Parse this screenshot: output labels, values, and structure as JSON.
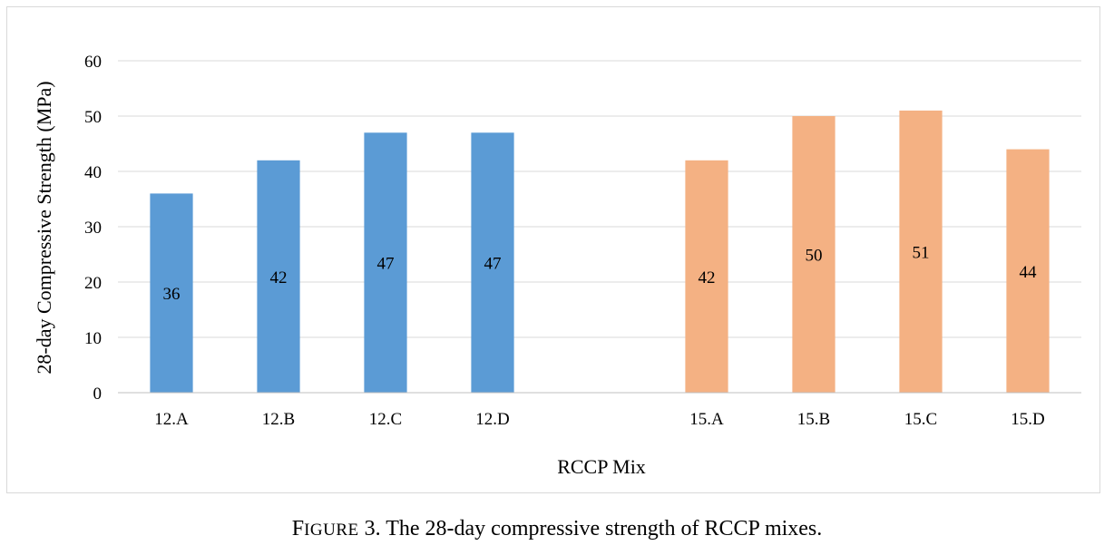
{
  "chart_data": {
    "type": "bar",
    "categories": [
      "12.A",
      "12.B",
      "12.C",
      "12.D",
      "",
      "15.A",
      "15.B",
      "15.C",
      "15.D"
    ],
    "series": [
      {
        "values": [
          36,
          42,
          47,
          47,
          null,
          null,
          null,
          null,
          null
        ],
        "color": "#5b9bd5"
      },
      {
        "values": [
          null,
          null,
          null,
          null,
          null,
          42,
          50,
          51,
          44
        ],
        "color": "#f4b183"
      }
    ],
    "data_labels": [
      "36",
      "42",
      "47",
      "47",
      "",
      "42",
      "50",
      "51",
      "44"
    ],
    "title": "",
    "xlabel": "RCCP Mix",
    "ylabel": "28-day Compressive Strength (MPa)",
    "ylim": [
      0,
      60
    ],
    "yticks": [
      0,
      10,
      20,
      30,
      40,
      50,
      60
    ],
    "grid": true,
    "legend": "none"
  },
  "caption": {
    "prefix_cap": "F",
    "prefix_small": "IGURE",
    "text": " 3. The 28-day compressive strength of RCCP mixes."
  }
}
